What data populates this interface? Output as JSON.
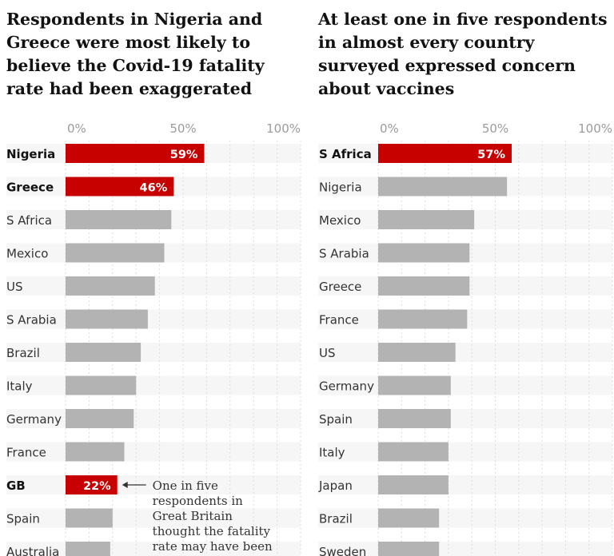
{
  "chart_data": [
    {
      "type": "bar",
      "title": "Respondents in Nigeria and Greece were most likely to believe the Covid-19 fatality rate had been exaggerated",
      "xlim": [
        0,
        100
      ],
      "ticks": [
        "0%",
        "50%",
        "100%"
      ],
      "grid": true,
      "categories": [
        "Nigeria",
        "Greece",
        "S Africa",
        "Mexico",
        "US",
        "S Arabia",
        "Brazil",
        "Italy",
        "Germany",
        "France",
        "GB",
        "Spain",
        "Australia"
      ],
      "values": [
        59,
        46,
        45,
        42,
        38,
        35,
        32,
        30,
        29,
        25,
        22,
        20,
        19
      ],
      "highlight": [
        "Nigeria",
        "Greece",
        "GB"
      ],
      "data_labels": {
        "Nigeria": "59%",
        "Greece": "46%",
        "GB": "22%"
      },
      "annotation": {
        "target": "GB",
        "lines": [
          "One in five",
          "respondents in",
          "Great Britain",
          "thought the fatality",
          "rate may have been"
        ]
      }
    },
    {
      "type": "bar",
      "title": "At least one in five respondents in almost every country surveyed expressed concern about vaccines",
      "xlim": [
        0,
        100
      ],
      "ticks": [
        "0%",
        "50%",
        "100%"
      ],
      "grid": true,
      "categories": [
        "S Africa",
        "Nigeria",
        "Mexico",
        "S Arabia",
        "Greece",
        "France",
        "US",
        "Germany",
        "Spain",
        "Italy",
        "Japan",
        "Brazil",
        "Sweden"
      ],
      "values": [
        57,
        55,
        41,
        39,
        39,
        38,
        33,
        31,
        31,
        30,
        30,
        26,
        26
      ],
      "highlight": [
        "S Africa"
      ],
      "data_labels": {
        "S Africa": "57%"
      }
    }
  ],
  "colors": {
    "highlight": "#c70000",
    "bar": "#b3b3b3",
    "track": "#f6f6f6",
    "grid": "#dcdcdc",
    "text": "#333333"
  }
}
